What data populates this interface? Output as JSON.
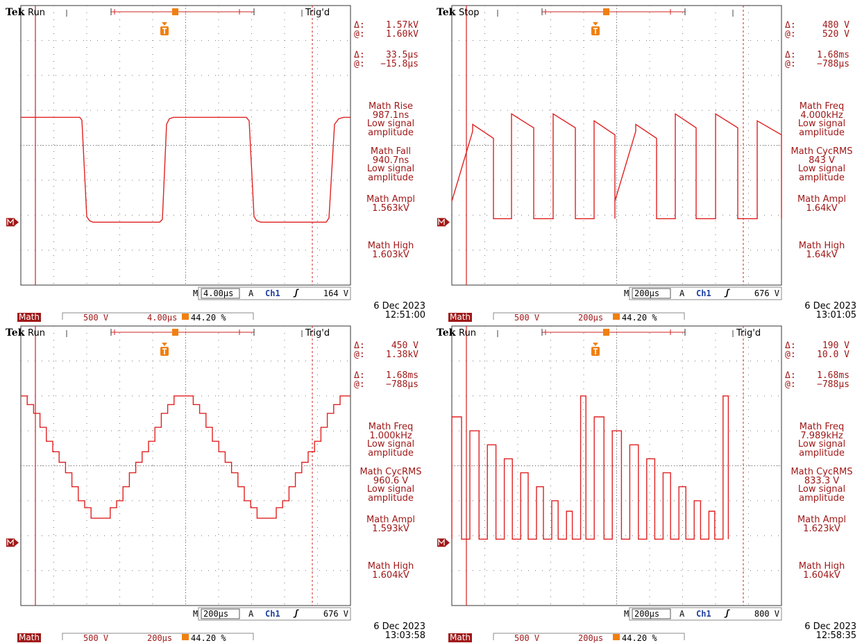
{
  "colors": {
    "trace": "#e02020",
    "readout": "#a01818",
    "grid": "#777777",
    "cursor": "#d02020",
    "trigger": "#f08010",
    "channel": "#1e3fa0"
  },
  "icons": {
    "trigger_marker": "T-trigger-icon",
    "math_ground": "M-ground-marker-icon",
    "trigger_slope": "rising-edge-icon"
  },
  "screens": [
    {
      "id": "tl",
      "brand": "Tek",
      "state": "Run",
      "trig_status": "Trig'd",
      "cursor1": {
        "delta_label": "Δ:",
        "delta": "1.57kV",
        "at_label": "@:",
        "at": "1.60kV"
      },
      "cursor2": {
        "delta_label": "Δ:",
        "delta": "33.5µs",
        "at_label": "@:",
        "at": "−15.8µs"
      },
      "measurements": [
        {
          "head": "Math Rise",
          "value": "987.1ns",
          "note1": "Low signal",
          "note2": "amplitude"
        },
        {
          "head": "Math Fall",
          "value": "940.7ns",
          "note1": "Low signal",
          "note2": "amplitude"
        },
        {
          "head": "Math Ampl",
          "value": "1.563kV",
          "note1": "",
          "note2": ""
        },
        {
          "head": "Math High",
          "value": "1.603kV",
          "note1": "",
          "note2": ""
        }
      ],
      "timebase": "4.00µs",
      "m_label": "M",
      "a_label": "A",
      "trig_source": "Ch1",
      "trig_level": "164 V",
      "date": "6 Dec  2023",
      "time": "12:51:00",
      "math_label": "Math",
      "math_scale": "500 V",
      "math_time": "4.00µs",
      "trig_pos": "44.20 %",
      "ground_marker": "M",
      "wave": "square",
      "y_values": {
        "high": 1.603,
        "low": 0.04
      }
    },
    {
      "id": "tr",
      "brand": "Tek",
      "state": "Stop",
      "trig_status": "",
      "cursor1": {
        "delta_label": "Δ:",
        "delta": "480 V",
        "at_label": "@:",
        "at": "520 V"
      },
      "cursor2": {
        "delta_label": "Δ:",
        "delta": "1.68ms",
        "at_label": "@:",
        "at": "−788µs"
      },
      "measurements": [
        {
          "head": "Math Freq",
          "value": "4.000kHz",
          "note1": "Low signal",
          "note2": "amplitude"
        },
        {
          "head": "Math CycRMS",
          "value": "843 V",
          "note1": "Low signal",
          "note2": "amplitude"
        },
        {
          "head": "Math Ampl",
          "value": "1.64kV",
          "note1": "",
          "note2": ""
        },
        {
          "head": "Math High",
          "value": "1.64kV",
          "note1": "",
          "note2": ""
        }
      ],
      "timebase": "200µs",
      "m_label": "M",
      "a_label": "A",
      "trig_source": "Ch1",
      "trig_level": "676 V",
      "date": "6 Dec  2023",
      "time": "13:01:05",
      "math_label": "Math",
      "math_scale": "500 V",
      "math_time": "200µs",
      "trig_pos": "44.20 %",
      "ground_marker": "M",
      "wave": "pwm"
    },
    {
      "id": "bl",
      "brand": "Tek",
      "state": "Run",
      "trig_status": "Trig'd",
      "cursor1": {
        "delta_label": "Δ:",
        "delta": "450 V",
        "at_label": "@:",
        "at": "1.38kV"
      },
      "cursor2": {
        "delta_label": "Δ:",
        "delta": "1.68ms",
        "at_label": "@:",
        "at": "−788µs"
      },
      "measurements": [
        {
          "head": "Math Freq",
          "value": "1.000kHz",
          "note1": "Low signal",
          "note2": "amplitude"
        },
        {
          "head": "Math CycRMS",
          "value": "960.6 V",
          "note1": "Low signal",
          "note2": "amplitude"
        },
        {
          "head": "Math Ampl",
          "value": "1.593kV",
          "note1": "",
          "note2": ""
        },
        {
          "head": "Math High",
          "value": "1.604kV",
          "note1": "",
          "note2": ""
        }
      ],
      "timebase": "200µs",
      "m_label": "M",
      "a_label": "A",
      "trig_source": "Ch1",
      "trig_level": "676 V",
      "date": "6 Dec  2023",
      "time": "13:03:58",
      "math_label": "Math",
      "math_scale": "500 V",
      "math_time": "200µs",
      "trig_pos": "44.20 %",
      "ground_marker": "M",
      "wave": "staircase"
    },
    {
      "id": "br",
      "brand": "Tek",
      "state": "Run",
      "trig_status": "Trig'd",
      "cursor1": {
        "delta_label": "Δ:",
        "delta": "190 V",
        "at_label": "@:",
        "at": "10.0 V"
      },
      "cursor2": {
        "delta_label": "Δ:",
        "delta": "1.68ms",
        "at_label": "@:",
        "at": "−788µs"
      },
      "measurements": [
        {
          "head": "Math Freq",
          "value": "7.989kHz",
          "note1": "Low signal",
          "note2": "amplitude"
        },
        {
          "head": "Math CycRMS",
          "value": "833.3 V",
          "note1": "Low signal",
          "note2": "amplitude"
        },
        {
          "head": "Math Ampl",
          "value": "1.623kV",
          "note1": "",
          "note2": ""
        },
        {
          "head": "Math High",
          "value": "1.604kV",
          "note1": "",
          "note2": ""
        }
      ],
      "timebase": "200µs",
      "m_label": "M",
      "a_label": "A",
      "trig_source": "Ch1",
      "trig_level": "800 V",
      "date": "6 Dec  2023",
      "time": "12:58:35",
      "math_label": "Math",
      "math_scale": "500 V",
      "math_time": "200µs",
      "trig_pos": "44.20 %",
      "ground_marker": "M",
      "wave": "pulses"
    }
  ]
}
